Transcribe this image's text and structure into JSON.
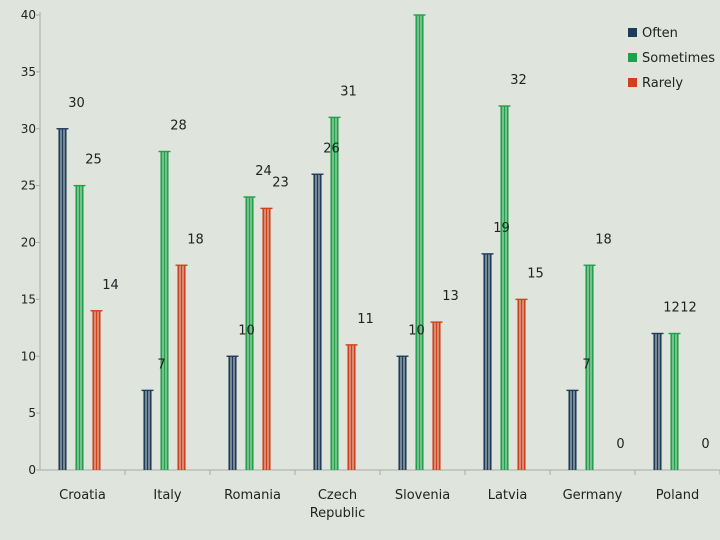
{
  "chart_data": {
    "type": "bar",
    "categories": [
      "Croatia",
      "Italy",
      "Romania",
      "Czech Republic",
      "Slovenia",
      "Latvia",
      "Germany",
      "Poland"
    ],
    "series": [
      {
        "name": "Often",
        "color": "#1f3b5a",
        "values": [
          30,
          7,
          10,
          26,
          10,
          19,
          7,
          12
        ]
      },
      {
        "name": "Sometimes",
        "color": "#1fa04a",
        "values": [
          25,
          28,
          24,
          31,
          40,
          32,
          18,
          12
        ]
      },
      {
        "name": "Rarely",
        "color": "#d2401a",
        "values": [
          14,
          18,
          23,
          11,
          13,
          15,
          0,
          0
        ]
      }
    ],
    "data_labels": [
      {
        "category": "Croatia",
        "series": "Often",
        "text": "30"
      },
      {
        "category": "Croatia",
        "series": "Sometimes",
        "text": "25"
      },
      {
        "category": "Croatia",
        "series": "Rarely",
        "text": "14"
      },
      {
        "category": "Italy",
        "series": "Often",
        "text": "7"
      },
      {
        "category": "Italy",
        "series": "Sometimes",
        "text": "28"
      },
      {
        "category": "Italy",
        "series": "Rarely",
        "text": "18"
      },
      {
        "category": "Romania",
        "series": "Often",
        "text": "10"
      },
      {
        "category": "Romania",
        "series": "Sometimes",
        "text": "24"
      },
      {
        "category": "Romania",
        "series": "Rarely",
        "text": "23"
      },
      {
        "category": "Czech Republic",
        "series": "Often",
        "text": "26"
      },
      {
        "category": "Czech Republic",
        "series": "Sometimes",
        "text": "31"
      },
      {
        "category": "Czech Republic",
        "series": "Rarely",
        "text": "11"
      },
      {
        "category": "Slovenia",
        "series": "Often",
        "text": "10"
      },
      {
        "category": "Slovenia",
        "series": "Rarely",
        "text": "13"
      },
      {
        "category": "Latvia",
        "series": "Often",
        "text": "19"
      },
      {
        "category": "Latvia",
        "series": "Sometimes",
        "text": "32"
      },
      {
        "category": "Latvia",
        "series": "Rarely",
        "text": "15"
      },
      {
        "category": "Germany",
        "series": "Often",
        "text": "7"
      },
      {
        "category": "Germany",
        "series": "Sometimes",
        "text": "18"
      },
      {
        "category": "Germany",
        "series": "Rarely",
        "text": "0"
      },
      {
        "category": "Poland",
        "series": "Often",
        "text": "12"
      },
      {
        "category": "Poland",
        "series": "Sometimes",
        "text": "12"
      },
      {
        "category": "Poland",
        "series": "Rarely",
        "text": "0"
      }
    ],
    "ylim": [
      0,
      40
    ],
    "yticks": [
      0,
      5,
      10,
      15,
      20,
      25,
      30,
      35,
      40
    ],
    "legend_position": "top-right",
    "grid": false,
    "title": "",
    "xlabel": "",
    "ylabel": ""
  }
}
